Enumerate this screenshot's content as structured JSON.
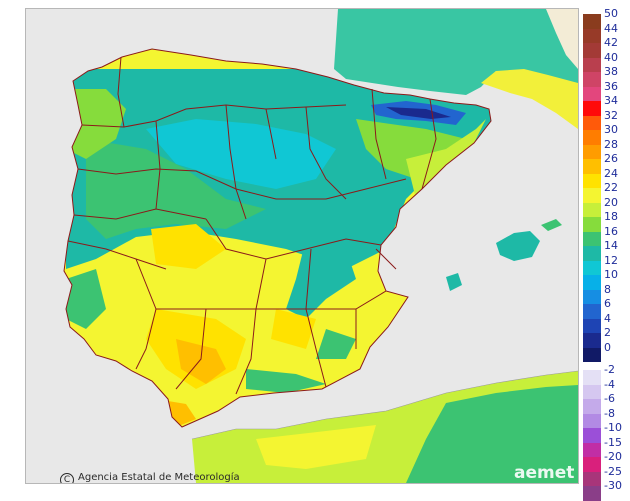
{
  "credit": {
    "symbol": "C",
    "text": "Agencia Estatal de Meteorología"
  },
  "brand": "aemet",
  "legend": {
    "label_color": "#1f2d9a",
    "bins": [
      {
        "label": "50",
        "color": "#8a3c1e"
      },
      {
        "label": "44",
        "color": "#973a28"
      },
      {
        "label": "42",
        "color": "#a33a36"
      },
      {
        "label": "40",
        "color": "#b93f4e"
      },
      {
        "label": "38",
        "color": "#cf4466"
      },
      {
        "label": "36",
        "color": "#e3467d"
      },
      {
        "label": "34",
        "color": "#ff0a0a"
      },
      {
        "label": "32",
        "color": "#ff5a0a"
      },
      {
        "label": "30",
        "color": "#ff7d00"
      },
      {
        "label": "28",
        "color": "#ff9c00"
      },
      {
        "label": "26",
        "color": "#ffbf00"
      },
      {
        "label": "24",
        "color": "#ffe200"
      },
      {
        "label": "22",
        "color": "#f4f531"
      },
      {
        "label": "20",
        "color": "#c7ef3a"
      },
      {
        "label": "18",
        "color": "#86dc3c"
      },
      {
        "label": "16",
        "color": "#3cc372"
      },
      {
        "label": "14",
        "color": "#1eb9a6"
      },
      {
        "label": "12",
        "color": "#10c7d4"
      },
      {
        "label": "10",
        "color": "#07b0e8"
      },
      {
        "label": "8",
        "color": "#168ee3"
      },
      {
        "label": "6",
        "color": "#2265cf"
      },
      {
        "label": "4",
        "color": "#1e44b4"
      },
      {
        "label": "2",
        "color": "#1a2a8e"
      },
      {
        "label": "0",
        "color": "#111a66"
      },
      {
        "label": "-2",
        "color": "#e4e0f5"
      },
      {
        "label": "-4",
        "color": "#d5c7f0"
      },
      {
        "label": "-6",
        "color": "#c4aaea"
      },
      {
        "label": "-8",
        "color": "#b28ae4"
      },
      {
        "label": "-10",
        "color": "#9b4fd8"
      },
      {
        "label": "-15",
        "color": "#c12ea5"
      },
      {
        "label": "-20",
        "color": "#d9207c"
      },
      {
        "label": "-25",
        "color": "#a8357a"
      },
      {
        "label": "-30",
        "color": "#8a3e88"
      }
    ]
  },
  "map_colors": {
    "sea": "#e8e8e8",
    "outside_land": "#f3ecd6",
    "boundary": "#8b1a1a"
  }
}
